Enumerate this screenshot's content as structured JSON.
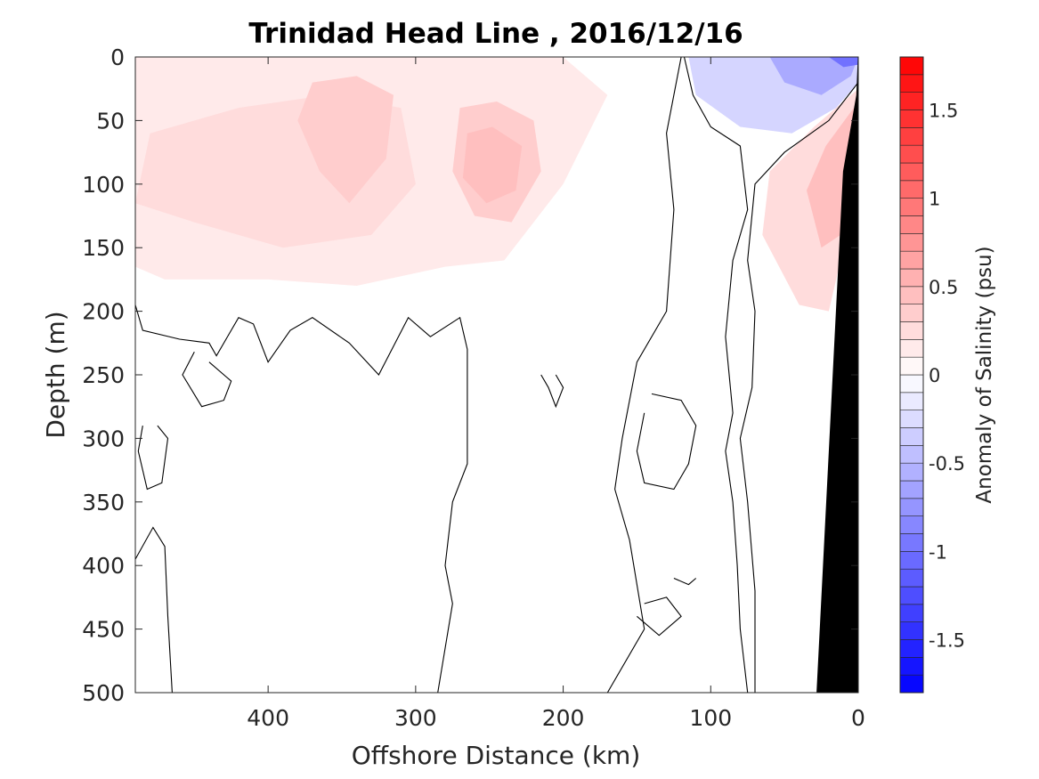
{
  "chart_data": {
    "type": "contourf",
    "title": "Trinidad Head Line , 2016/12/16",
    "xlabel": "Offshore Distance (km)",
    "ylabel": "Depth (m)",
    "colorbar_label": "Anomaly of Salinity (psu)",
    "x_reversed": true,
    "y_reversed": true,
    "xlim": [
      490,
      0
    ],
    "ylim": [
      0,
      500
    ],
    "x_ticks": [
      400,
      300,
      200,
      100,
      0
    ],
    "y_ticks": [
      0,
      50,
      100,
      150,
      200,
      250,
      300,
      350,
      400,
      450,
      500
    ],
    "colorbar": {
      "range": [
        -1.8,
        1.8
      ],
      "step": 0.1,
      "ticks": [
        "-1.5",
        "-1",
        "-0.5",
        "0",
        "0.5",
        "1",
        "1.5"
      ],
      "tick_values": [
        -1.5,
        -1,
        -0.5,
        0,
        0.5,
        1,
        1.5
      ],
      "colormap": "blue-white-red",
      "low_color": "#0000ff",
      "mid_color": "#ffffff",
      "high_color": "#ff0000"
    },
    "regions": [
      {
        "name": "surface positive anomaly",
        "value": 0.15,
        "points": [
          [
            490,
            0
          ],
          [
            200,
            0
          ],
          [
            170,
            30
          ],
          [
            200,
            100
          ],
          [
            240,
            160
          ],
          [
            280,
            165
          ],
          [
            340,
            180
          ],
          [
            400,
            175
          ],
          [
            470,
            175
          ],
          [
            490,
            165
          ]
        ]
      },
      {
        "name": "mid anomaly west",
        "value": 0.25,
        "points": [
          [
            480,
            60
          ],
          [
            420,
            40
          ],
          [
            360,
            30
          ],
          [
            310,
            40
          ],
          [
            300,
            100
          ],
          [
            330,
            140
          ],
          [
            390,
            150
          ],
          [
            450,
            130
          ],
          [
            490,
            115
          ]
        ]
      },
      {
        "name": "core anomaly 340 km",
        "value": 0.35,
        "points": [
          [
            370,
            20
          ],
          [
            340,
            15
          ],
          [
            315,
            30
          ],
          [
            320,
            80
          ],
          [
            345,
            115
          ],
          [
            365,
            90
          ],
          [
            380,
            50
          ]
        ]
      },
      {
        "name": "core anomaly 250 km",
        "value": 0.35,
        "points": [
          [
            270,
            40
          ],
          [
            245,
            35
          ],
          [
            220,
            50
          ],
          [
            215,
            90
          ],
          [
            235,
            130
          ],
          [
            260,
            125
          ],
          [
            275,
            90
          ]
        ]
      },
      {
        "name": "inner core 250 km",
        "value": 0.45,
        "points": [
          [
            265,
            60
          ],
          [
            248,
            55
          ],
          [
            228,
            70
          ],
          [
            232,
            105
          ],
          [
            252,
            115
          ],
          [
            268,
            95
          ]
        ]
      },
      {
        "name": "coastal positive anomaly",
        "value": 0.25,
        "points": [
          [
            0,
            25
          ],
          [
            30,
            55
          ],
          [
            60,
            90
          ],
          [
            65,
            140
          ],
          [
            40,
            195
          ],
          [
            20,
            200
          ],
          [
            12,
            160
          ],
          [
            8,
            110
          ]
        ]
      },
      {
        "name": "coastal core",
        "value": 0.45,
        "points": [
          [
            3,
            40
          ],
          [
            22,
            70
          ],
          [
            35,
            105
          ],
          [
            25,
            150
          ],
          [
            12,
            140
          ],
          [
            6,
            90
          ]
        ]
      },
      {
        "name": "nearshore fresh anomaly",
        "value": -0.3,
        "points": [
          [
            0,
            0
          ],
          [
            115,
            0
          ],
          [
            110,
            30
          ],
          [
            80,
            55
          ],
          [
            45,
            60
          ],
          [
            15,
            40
          ],
          [
            0,
            20
          ]
        ]
      },
      {
        "name": "nearshore fresh core",
        "value": -0.6,
        "points": [
          [
            0,
            0
          ],
          [
            60,
            0
          ],
          [
            50,
            20
          ],
          [
            25,
            30
          ],
          [
            5,
            15
          ]
        ]
      },
      {
        "name": "nearshore fresh peak",
        "value": -1.0,
        "points": [
          [
            0,
            0
          ],
          [
            20,
            0
          ],
          [
            10,
            8
          ],
          [
            0,
            6
          ]
        ]
      }
    ],
    "zero_contours": [
      [
        [
          490,
          195
        ],
        [
          485,
          215
        ],
        [
          460,
          222
        ],
        [
          440,
          225
        ],
        [
          435,
          235
        ],
        [
          420,
          205
        ],
        [
          410,
          210
        ],
        [
          400,
          240
        ],
        [
          385,
          215
        ],
        [
          370,
          205
        ],
        [
          345,
          225
        ],
        [
          325,
          250
        ],
        [
          305,
          205
        ],
        [
          290,
          220
        ],
        [
          270,
          205
        ],
        [
          265,
          230
        ],
        [
          265,
          320
        ],
        [
          275,
          350
        ],
        [
          280,
          400
        ],
        [
          275,
          430
        ],
        [
          285,
          500
        ]
      ],
      [
        [
          440,
          240
        ],
        [
          425,
          255
        ],
        [
          430,
          270
        ],
        [
          445,
          275
        ],
        [
          458,
          250
        ],
        [
          450,
          232
        ]
      ],
      [
        [
          475,
          290
        ],
        [
          468,
          300
        ],
        [
          472,
          335
        ],
        [
          482,
          340
        ],
        [
          488,
          310
        ],
        [
          485,
          290
        ]
      ],
      [
        [
          490,
          395
        ],
        [
          478,
          370
        ],
        [
          470,
          385
        ],
        [
          468,
          440
        ],
        [
          465,
          500
        ]
      ],
      [
        [
          215,
          250
        ],
        [
          210,
          260
        ],
        [
          205,
          275
        ],
        [
          200,
          260
        ],
        [
          205,
          250
        ]
      ],
      [
        [
          140,
          265
        ],
        [
          120,
          270
        ],
        [
          110,
          290
        ],
        [
          115,
          320
        ],
        [
          125,
          340
        ],
        [
          145,
          335
        ],
        [
          150,
          310
        ],
        [
          145,
          280
        ]
      ],
      [
        [
          145,
          430
        ],
        [
          130,
          425
        ],
        [
          120,
          440
        ],
        [
          135,
          455
        ],
        [
          150,
          440
        ]
      ],
      [
        [
          125,
          410
        ],
        [
          115,
          415
        ],
        [
          110,
          410
        ]
      ],
      [
        [
          118,
          0
        ],
        [
          112,
          30
        ],
        [
          100,
          55
        ],
        [
          80,
          70
        ],
        [
          75,
          120
        ],
        [
          85,
          160
        ],
        [
          90,
          220
        ],
        [
          85,
          280
        ],
        [
          90,
          310
        ],
        [
          85,
          350
        ],
        [
          82,
          400
        ],
        [
          80,
          450
        ],
        [
          75,
          500
        ]
      ],
      [
        [
          120,
          0
        ],
        [
          130,
          60
        ],
        [
          125,
          120
        ],
        [
          130,
          200
        ],
        [
          150,
          240
        ],
        [
          160,
          300
        ],
        [
          165,
          340
        ],
        [
          155,
          380
        ],
        [
          145,
          450
        ],
        [
          170,
          500
        ]
      ],
      [
        [
          0,
          20
        ],
        [
          20,
          50
        ],
        [
          50,
          75
        ],
        [
          70,
          100
        ],
        [
          75,
          160
        ],
        [
          70,
          200
        ],
        [
          72,
          260
        ],
        [
          80,
          300
        ],
        [
          75,
          350
        ],
        [
          70,
          420
        ],
        [
          70,
          500
        ]
      ]
    ],
    "land_mask": [
      [
        0,
        0
      ],
      [
        0,
        500
      ],
      [
        28,
        500
      ],
      [
        10,
        90
      ],
      [
        1,
        30
      ]
    ]
  }
}
